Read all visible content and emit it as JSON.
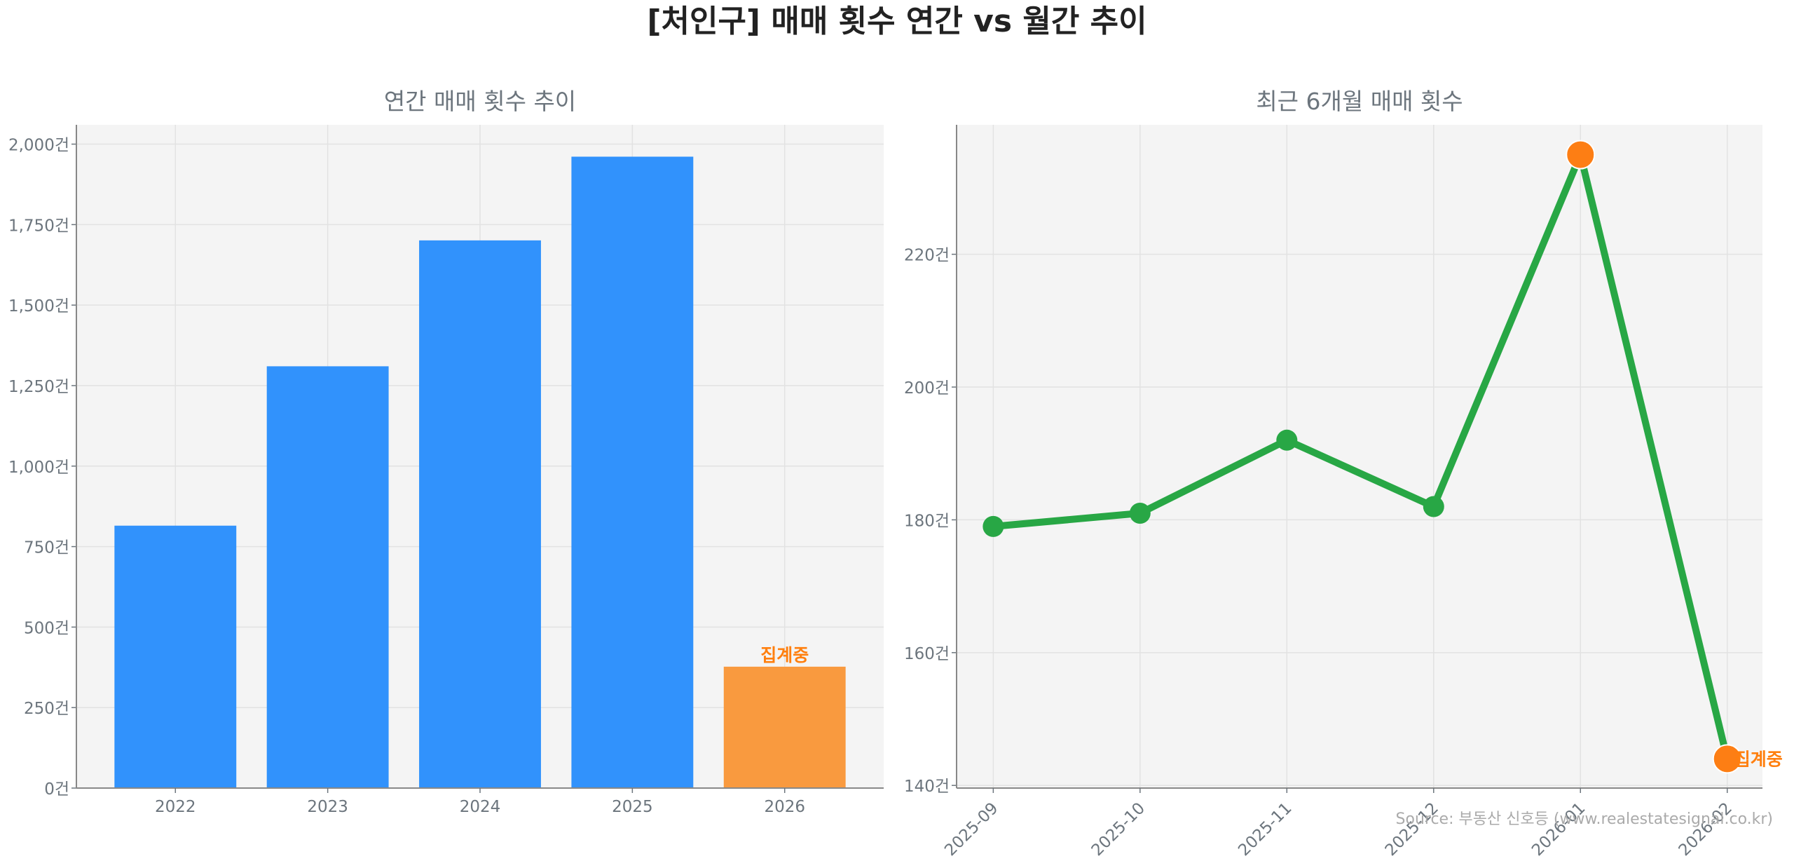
{
  "title": "[처인구] 매매 횟수 연간 vs 월간 추이",
  "source": "Source: 부동산 신호등 (www.realestatesignal.co.kr)",
  "colors": {
    "bar": "#3192fc",
    "bar_partial": "#f99a3f",
    "line": "#28a745",
    "highlight": "#fd7e14",
    "label": "#ff7f0e",
    "axes_bg": "#f4f4f4",
    "text": "#6c757d"
  },
  "chart_data": [
    {
      "type": "bar",
      "title": "연간 매매 횟수 추이",
      "categories": [
        "2022",
        "2023",
        "2024",
        "2025",
        "2026"
      ],
      "values": [
        815,
        1310,
        1701,
        1961,
        377
      ],
      "partial_index": 4,
      "annotation": "집계중",
      "ylim": [
        0,
        2060
      ],
      "yticks": [
        0,
        250,
        500,
        750,
        1000,
        1250,
        1500,
        1750,
        2000
      ],
      "ytick_labels": [
        "0건",
        "250건",
        "500건",
        "750건",
        "1,000건",
        "1,250건",
        "1,500건",
        "1,750건",
        "2,000건"
      ],
      "grid": true
    },
    {
      "type": "line",
      "title": "최근 6개월 매매 횟수",
      "categories": [
        "2025-09",
        "2025-10",
        "2025-11",
        "2025-12",
        "2026-01",
        "2026-02"
      ],
      "values": [
        179,
        181,
        192,
        182,
        235,
        144
      ],
      "highlight_indices": [
        4,
        5
      ],
      "annotation": "집계중",
      "ylim": [
        139.6,
        239.5
      ],
      "yticks": [
        140,
        160,
        180,
        200,
        220
      ],
      "ytick_labels": [
        "140건",
        "160건",
        "180건",
        "200건",
        "220건"
      ],
      "grid": true
    }
  ]
}
